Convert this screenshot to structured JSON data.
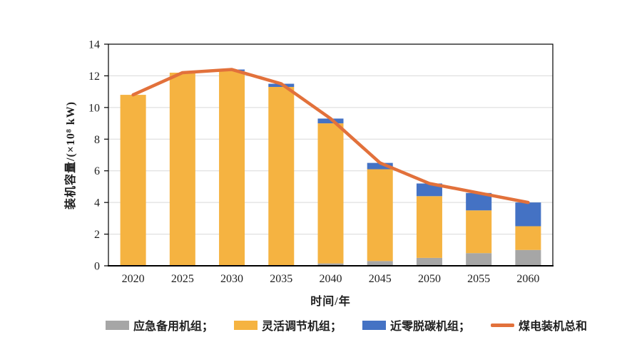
{
  "chart_data": {
    "type": "bar",
    "subtype": "stacked-bars-with-total-line",
    "title": "",
    "categories": [
      "2020",
      "2025",
      "2030",
      "2035",
      "2040",
      "2045",
      "2050",
      "2055",
      "2060"
    ],
    "series": [
      {
        "name": "应急备用机组",
        "color": "#A6A6A6",
        "values": [
          0,
          0,
          0,
          0,
          0.15,
          0.3,
          0.5,
          0.8,
          1.0
        ]
      },
      {
        "name": "灵活调节机组",
        "color": "#F5B341",
        "values": [
          10.8,
          12.2,
          12.3,
          11.3,
          8.85,
          5.8,
          3.9,
          2.7,
          1.5
        ]
      },
      {
        "name": "近零脱碳机组",
        "color": "#4472C4",
        "values": [
          0,
          0,
          0.1,
          0.2,
          0.3,
          0.4,
          0.8,
          1.1,
          1.5
        ]
      }
    ],
    "line_series": {
      "name": "煤电装机总和",
      "color": "#E2713B",
      "values": [
        10.8,
        12.2,
        12.4,
        11.5,
        9.3,
        6.5,
        5.2,
        4.6,
        4.0
      ]
    },
    "xlabel": "时间/年",
    "ylabel": "装机容量/(×10⁸ kW)",
    "ylim": [
      0,
      14
    ],
    "yticks": [
      0,
      2,
      4,
      6,
      8,
      10,
      12,
      14
    ],
    "grid": true,
    "legend_position": "bottom",
    "legend": {
      "items": [
        {
          "label": "应急备用机组；",
          "swatch": "gray-rect",
          "color": "#A6A6A6"
        },
        {
          "label": "灵活调节机组；",
          "swatch": "yellow-rect",
          "color": "#F5B341"
        },
        {
          "label": "近零脱碳机组；",
          "swatch": "blue-rect",
          "color": "#4472C4"
        },
        {
          "label": "煤电装机总和",
          "swatch": "orange-line",
          "color": "#E2713B"
        }
      ]
    },
    "colors": {
      "grid": "#D9D9D9",
      "axis": "#000000",
      "text": "#1F1F1F",
      "background": "#FFFFFF"
    }
  }
}
